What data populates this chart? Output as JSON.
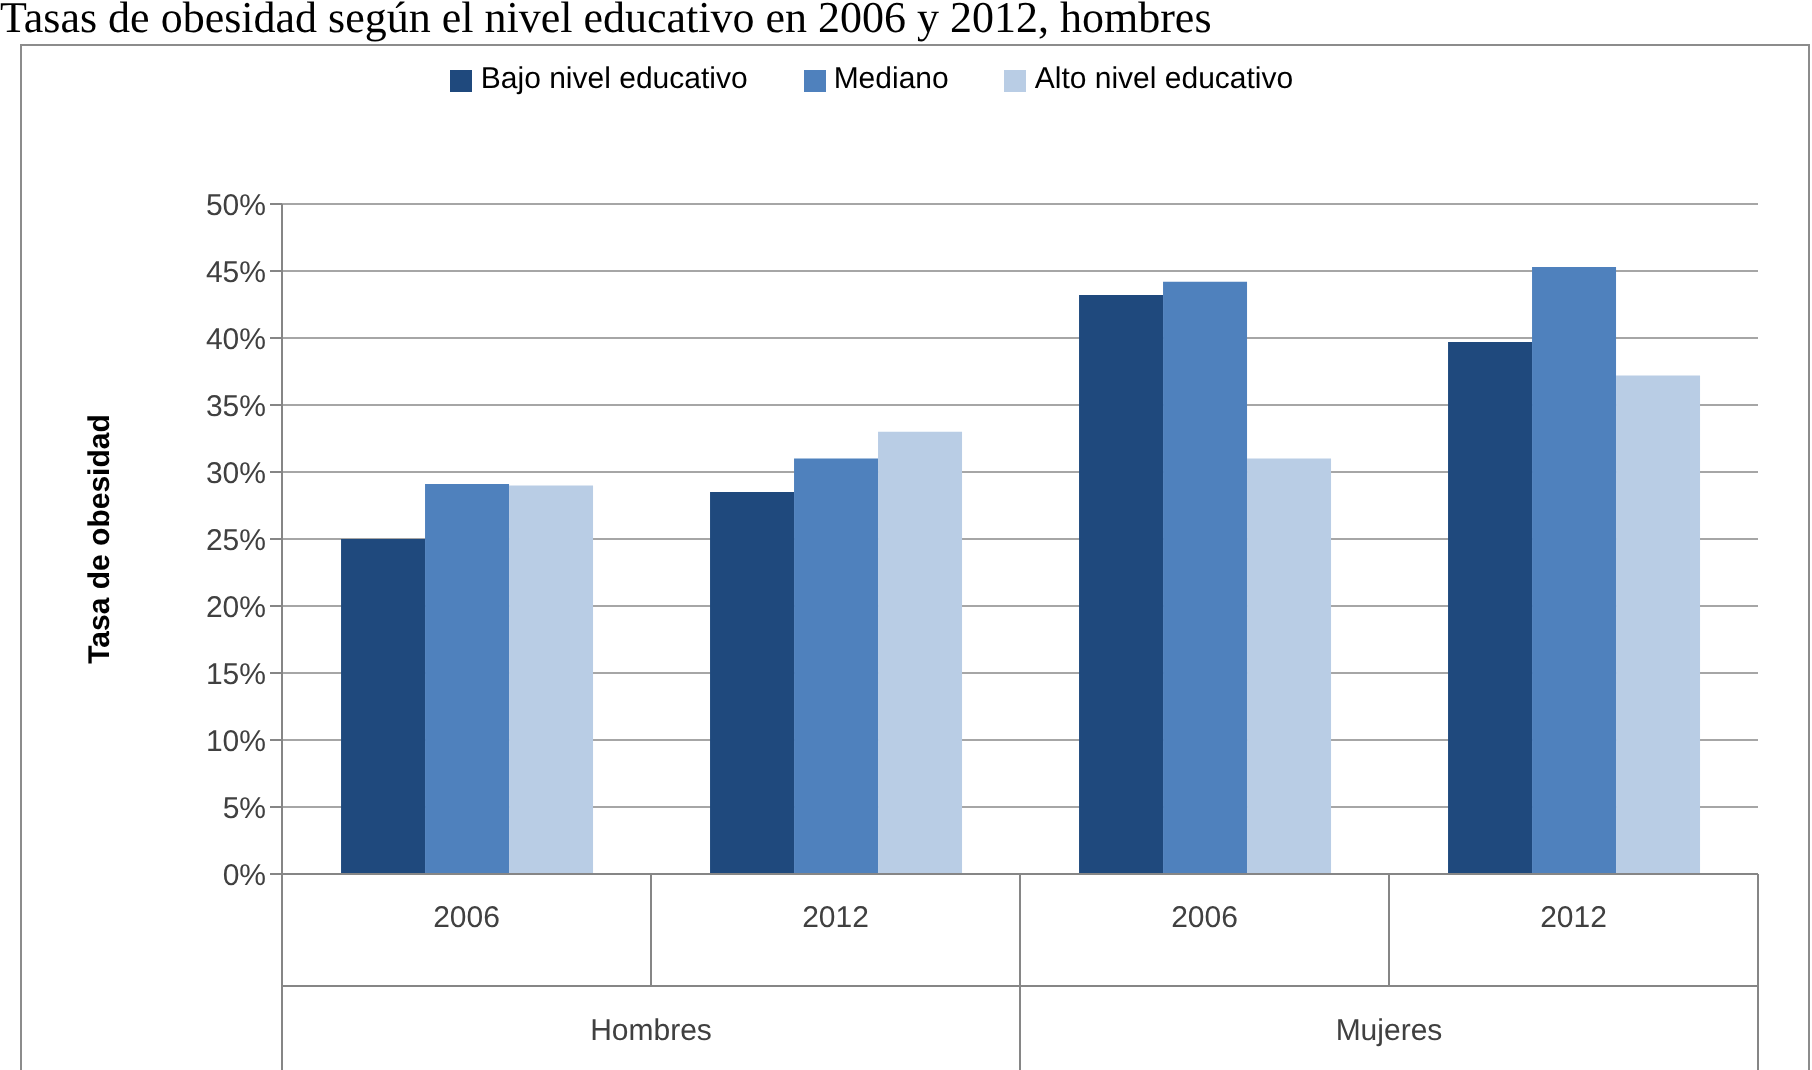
{
  "chart_data": {
    "type": "bar",
    "title": "Tasas de obesidad según el nivel educativo en 2006 y 2012, hombres",
    "ylabel": "Tasa de obesidad",
    "categories": [
      "2006",
      "2012",
      "2006",
      "2012"
    ],
    "annotations": [
      "Hombres",
      "Mujeres"
    ],
    "series": [
      {
        "name": "Bajo nivel educativo",
        "color": "#1f497d",
        "values": [
          25,
          28.5,
          43.2,
          39.7
        ]
      },
      {
        "name": "Mediano",
        "color": "#4f81bd",
        "values": [
          29.1,
          31,
          44.2,
          45.3
        ]
      },
      {
        "name": "Alto nivel educativo",
        "color": "#b9cde5",
        "values": [
          29,
          33,
          31,
          37.2
        ]
      }
    ],
    "ylim": [
      0,
      50
    ],
    "yticks": [
      {
        "value": 0,
        "label": "0%"
      },
      {
        "value": 5,
        "label": "5%"
      },
      {
        "value": 10,
        "label": "10%"
      },
      {
        "value": 15,
        "label": "15%"
      },
      {
        "value": 20,
        "label": "20%"
      },
      {
        "value": 25,
        "label": "25%"
      },
      {
        "value": 30,
        "label": "30%"
      },
      {
        "value": 35,
        "label": "35%"
      },
      {
        "value": 40,
        "label": "40%"
      },
      {
        "value": 45,
        "label": "45%"
      },
      {
        "value": 50,
        "label": "50%"
      }
    ],
    "grid": "y",
    "legend": "top"
  }
}
